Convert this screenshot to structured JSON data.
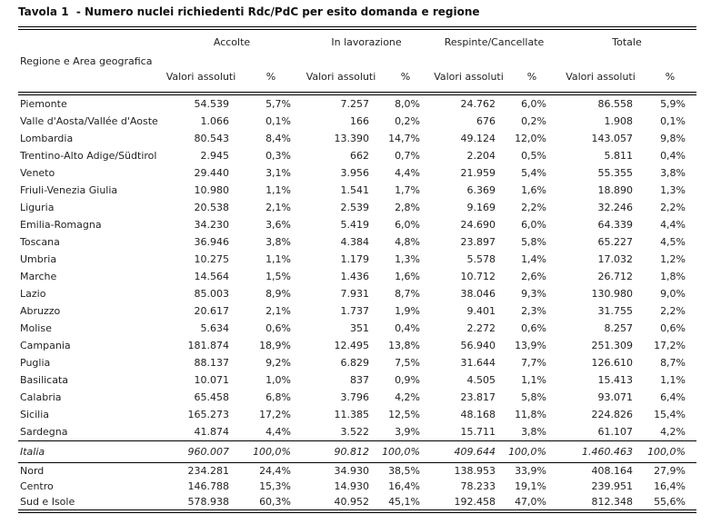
{
  "title": "Tavola 1  - Numero nuclei richiedenti Rdc/PdC per esito domanda e regione",
  "colors": {
    "background": "#ffffff",
    "text": "#1f1f1f",
    "line": "#000000"
  },
  "table": {
    "row_header": "Regione e Area geografica",
    "column_groups": [
      "Accolte",
      "In lavorazione",
      "Respinte/Cancellate",
      "Totale"
    ],
    "sub_headers": {
      "absolute": "Valori assoluti",
      "percent": "%"
    },
    "rows": [
      {
        "name": "Piemonte",
        "type": "region",
        "values": [
          "54.539",
          "5,7%",
          "7.257",
          "8,0%",
          "24.762",
          "6,0%",
          "86.558",
          "5,9%"
        ]
      },
      {
        "name": "Valle d'Aosta/Vallée d'Aoste",
        "type": "region",
        "values": [
          "1.066",
          "0,1%",
          "166",
          "0,2%",
          "676",
          "0,2%",
          "1.908",
          "0,1%"
        ]
      },
      {
        "name": "Lombardia",
        "type": "region",
        "values": [
          "80.543",
          "8,4%",
          "13.390",
          "14,7%",
          "49.124",
          "12,0%",
          "143.057",
          "9,8%"
        ]
      },
      {
        "name": "Trentino-Alto Adige/Südtirol",
        "type": "region",
        "values": [
          "2.945",
          "0,3%",
          "662",
          "0,7%",
          "2.204",
          "0,5%",
          "5.811",
          "0,4%"
        ]
      },
      {
        "name": "Veneto",
        "type": "region",
        "values": [
          "29.440",
          "3,1%",
          "3.956",
          "4,4%",
          "21.959",
          "5,4%",
          "55.355",
          "3,8%"
        ]
      },
      {
        "name": "Friuli-Venezia Giulia",
        "type": "region",
        "values": [
          "10.980",
          "1,1%",
          "1.541",
          "1,7%",
          "6.369",
          "1,6%",
          "18.890",
          "1,3%"
        ]
      },
      {
        "name": "Liguria",
        "type": "region",
        "values": [
          "20.538",
          "2,1%",
          "2.539",
          "2,8%",
          "9.169",
          "2,2%",
          "32.246",
          "2,2%"
        ]
      },
      {
        "name": "Emilia-Romagna",
        "type": "region",
        "values": [
          "34.230",
          "3,6%",
          "5.419",
          "6,0%",
          "24.690",
          "6,0%",
          "64.339",
          "4,4%"
        ]
      },
      {
        "name": "Toscana",
        "type": "region",
        "values": [
          "36.946",
          "3,8%",
          "4.384",
          "4,8%",
          "23.897",
          "5,8%",
          "65.227",
          "4,5%"
        ]
      },
      {
        "name": "Umbria",
        "type": "region",
        "values": [
          "10.275",
          "1,1%",
          "1.179",
          "1,3%",
          "5.578",
          "1,4%",
          "17.032",
          "1,2%"
        ]
      },
      {
        "name": "Marche",
        "type": "region",
        "values": [
          "14.564",
          "1,5%",
          "1.436",
          "1,6%",
          "10.712",
          "2,6%",
          "26.712",
          "1,8%"
        ]
      },
      {
        "name": "Lazio",
        "type": "region",
        "values": [
          "85.003",
          "8,9%",
          "7.931",
          "8,7%",
          "38.046",
          "9,3%",
          "130.980",
          "9,0%"
        ]
      },
      {
        "name": "Abruzzo",
        "type": "region",
        "values": [
          "20.617",
          "2,1%",
          "1.737",
          "1,9%",
          "9.401",
          "2,3%",
          "31.755",
          "2,2%"
        ]
      },
      {
        "name": "Molise",
        "type": "region",
        "values": [
          "5.634",
          "0,6%",
          "351",
          "0,4%",
          "2.272",
          "0,6%",
          "8.257",
          "0,6%"
        ]
      },
      {
        "name": "Campania",
        "type": "region",
        "values": [
          "181.874",
          "18,9%",
          "12.495",
          "13,8%",
          "56.940",
          "13,9%",
          "251.309",
          "17,2%"
        ]
      },
      {
        "name": "Puglia",
        "type": "region",
        "values": [
          "88.137",
          "9,2%",
          "6.829",
          "7,5%",
          "31.644",
          "7,7%",
          "126.610",
          "8,7%"
        ]
      },
      {
        "name": "Basilicata",
        "type": "region",
        "values": [
          "10.071",
          "1,0%",
          "837",
          "0,9%",
          "4.505",
          "1,1%",
          "15.413",
          "1,1%"
        ]
      },
      {
        "name": "Calabria",
        "type": "region",
        "values": [
          "65.458",
          "6,8%",
          "3.796",
          "4,2%",
          "23.817",
          "5,8%",
          "93.071",
          "6,4%"
        ]
      },
      {
        "name": "Sicilia",
        "type": "region",
        "values": [
          "165.273",
          "17,2%",
          "11.385",
          "12,5%",
          "48.168",
          "11,8%",
          "224.826",
          "15,4%"
        ]
      },
      {
        "name": "Sardegna",
        "type": "region",
        "values": [
          "41.874",
          "4,4%",
          "3.522",
          "3,9%",
          "15.711",
          "3,8%",
          "61.107",
          "4,2%"
        ]
      },
      {
        "name": "Italia",
        "type": "total",
        "values": [
          "960.007",
          "100,0%",
          "90.812",
          "100,0%",
          "409.644",
          "100,0%",
          "1.460.463",
          "100,0%"
        ]
      },
      {
        "name": "Nord",
        "type": "area",
        "values": [
          "234.281",
          "24,4%",
          "34.930",
          "38,5%",
          "138.953",
          "33,9%",
          "408.164",
          "27,9%"
        ]
      },
      {
        "name": "Centro",
        "type": "area",
        "values": [
          "146.788",
          "15,3%",
          "14.930",
          "16,4%",
          "78.233",
          "19,1%",
          "239.951",
          "16,4%"
        ]
      },
      {
        "name": "Sud e Isole",
        "type": "area",
        "values": [
          "578.938",
          "60,3%",
          "40.952",
          "45,1%",
          "192.458",
          "47,0%",
          "812.348",
          "55,6%"
        ]
      }
    ]
  }
}
